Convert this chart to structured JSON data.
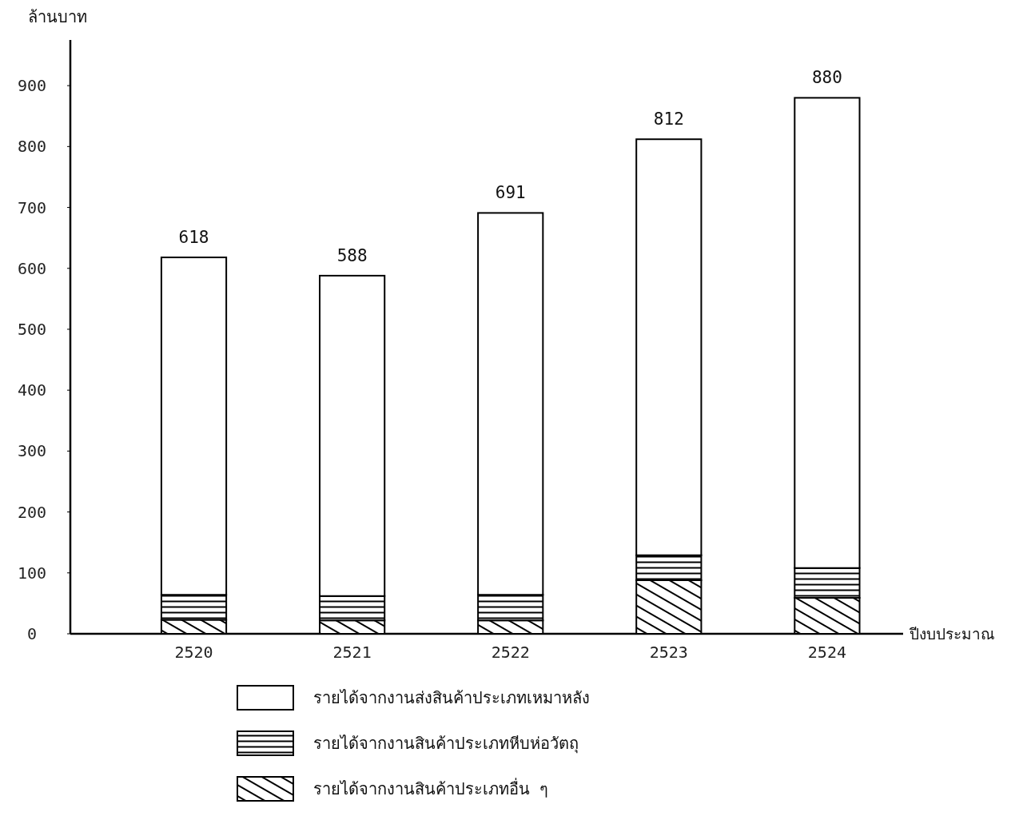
{
  "chart_data": {
    "type": "bar",
    "stacked": true,
    "xlabel": "ปีงบประมาณ",
    "ylabel": "ล้านบาท",
    "categories": [
      "2520",
      "2521",
      "2522",
      "2523",
      "2524"
    ],
    "series": [
      {
        "name": "รายได้จากงานสินค้าประเภทอื่น ๆ",
        "color": "#000000",
        "values": [
          23,
          22,
          22,
          88,
          59
        ]
      },
      {
        "name": "รายได้จากงานสินค้าประเภทหีบห่อวัตถุ",
        "color": "#000000",
        "values": [
          41,
          40,
          42,
          41,
          49
        ]
      },
      {
        "name": "รายได้จากงานส่งสินค้าประเภทเหมาหลัง",
        "color": "#ffffff",
        "values": [
          554,
          526,
          627,
          683,
          772
        ]
      }
    ],
    "totals": [
      "618",
      "588",
      "691",
      "812",
      "880"
    ],
    "ylim": [
      0,
      975
    ],
    "yticks": [
      0,
      100,
      200,
      300,
      400,
      500,
      600,
      700,
      800,
      900
    ],
    "grid": false,
    "legend": "bottom"
  }
}
